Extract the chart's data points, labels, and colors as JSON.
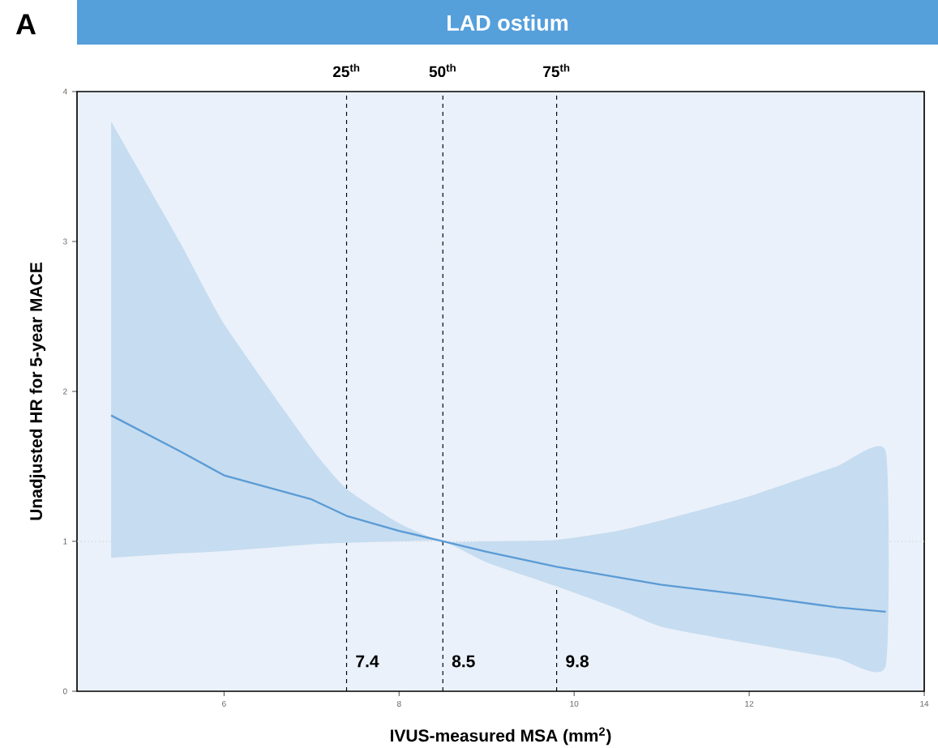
{
  "chart_data": {
    "type": "line",
    "title": "LAD ostium",
    "xlabel": "IVUS-measured MSA (mm$^{2}$)",
    "ylabel": "Unadjusted HR for 5-year MACE",
    "xlim": [
      4.32,
      14
    ],
    "ylim": [
      0,
      4
    ],
    "xticks": [
      6,
      8,
      10,
      12,
      14
    ],
    "yticks": [
      0,
      1,
      2,
      3,
      4
    ],
    "series": [
      {
        "color": "#5b9bd5",
        "x": [
          4.71,
          5.5,
          6,
          7,
          7.4,
          8,
          8.5,
          9,
          9.8,
          10.5,
          11,
          12,
          13,
          13.56
        ],
        "values": [
          1.84,
          1.6,
          1.44,
          1.28,
          1.17,
          1.07,
          1.0,
          0.93,
          0.83,
          0.76,
          0.71,
          0.64,
          0.56,
          0.53
        ],
        "lower": [
          0.89,
          0.92,
          0.935,
          0.98,
          0.99,
          1.0,
          1.0,
          0.86,
          0.7,
          0.55,
          0.43,
          0.32,
          0.22,
          0.17
        ],
        "upper": [
          3.8,
          2.99,
          2.45,
          1.62,
          1.35,
          1.12,
          1.0,
          1.0,
          1.01,
          1.07,
          1.14,
          1.3,
          1.5,
          1.6
        ]
      }
    ],
    "ref_lines": [
      {
        "axis": "x",
        "value": 7.4,
        "label": "25$^{th}$",
        "color": "#000000",
        "line_style": "dashed"
      },
      {
        "axis": "x",
        "value": 8.5,
        "label": "50$^{th}$",
        "color": "#000000",
        "line_style": "dashed"
      },
      {
        "axis": "x",
        "value": 9.8,
        "label": "75$^{th}$",
        "color": "#000000",
        "line_style": "dashed"
      },
      {
        "axis": "y",
        "value": 1,
        "color": "#c8c8c8",
        "line_style": "dotted"
      }
    ],
    "annotations": [
      "A",
      {
        "text": "7.4",
        "x": 7.4,
        "y": 0.2
      },
      {
        "text": "8.5",
        "x": 8.5,
        "y": 0.2
      },
      {
        "text": "9.8",
        "x": 9.8,
        "y": 0.2
      }
    ]
  }
}
